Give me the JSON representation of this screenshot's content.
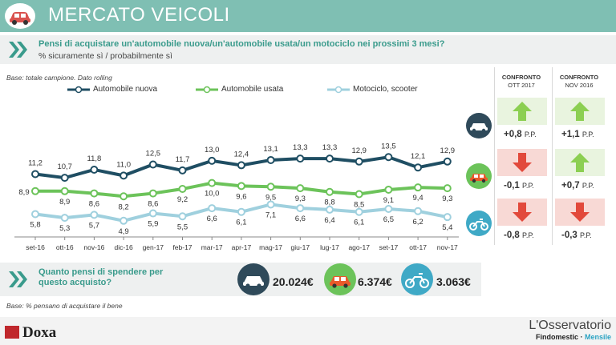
{
  "header": {
    "title": "MERCATO VEICOLI"
  },
  "question": {
    "text": "Pensi di acquistare un'automobile nuova/un'automobile usata/un motociclo nei prossimi 3 mesi?",
    "sub": "% sicuramente sì / probabilmente sì"
  },
  "base_top": "Base: totale campione. Dato rolling",
  "colors": {
    "new": "#1f4e63",
    "used": "#6cc35a",
    "moto": "#9fd0de",
    "up": "#8ccf52",
    "down": "#e2493b",
    "teal": "#3a9b8c"
  },
  "chart_data": {
    "type": "line",
    "categories": [
      "set-16",
      "ott-16",
      "nov-16",
      "dic-16",
      "gen-17",
      "feb-17",
      "mar-17",
      "apr-17",
      "mag-17",
      "giu-17",
      "lug-17",
      "ago-17",
      "set-17",
      "ott-17",
      "nov-17"
    ],
    "series": [
      {
        "name": "Automobile nuova",
        "values": [
          11.2,
          10.7,
          11.8,
          11.0,
          12.5,
          11.7,
          13.0,
          12.4,
          13.1,
          13.3,
          13.3,
          12.9,
          13.5,
          12.1,
          12.9
        ],
        "labels": [
          "11,2",
          "10,7",
          "11,8",
          "11,0",
          "12,5",
          "11,7",
          "13,0",
          "12,4",
          "13,1",
          "13,3",
          "13,3",
          "12,9",
          "13,5",
          "12,1",
          "12,9"
        ]
      },
      {
        "name": "Automobile usata",
        "values": [
          8.9,
          8.9,
          8.6,
          8.2,
          8.6,
          9.2,
          10.0,
          9.6,
          9.5,
          9.3,
          8.8,
          8.5,
          9.1,
          9.4,
          9.3
        ],
        "labels": [
          "8,9",
          "8,9",
          "8,6",
          "8,2",
          "8,6",
          "9,2",
          "10,0",
          "9,6",
          "9,5",
          "9,3",
          "8,8",
          "8,5",
          "9,1",
          "9,4",
          "9,3"
        ]
      },
      {
        "name": "Motociclo, scooter",
        "values": [
          5.8,
          5.3,
          5.7,
          4.9,
          5.9,
          5.5,
          6.6,
          6.1,
          7.1,
          6.6,
          6.4,
          6.1,
          6.5,
          6.2,
          5.4
        ],
        "labels": [
          "5,8",
          "5,3",
          "5,7",
          "4,9",
          "5,9",
          "5,5",
          "6,6",
          "6,1",
          "7,1",
          "6,6",
          "6,4",
          "6,1",
          "6,5",
          "6,2",
          "5,4"
        ]
      }
    ]
  },
  "comparison": {
    "col1": {
      "line1": "CONFRONTO",
      "line2": "OTT 2017"
    },
    "col2": {
      "line1": "CONFRONTO",
      "line2": "NOV 2016"
    },
    "unit": "P.P.",
    "rows": [
      {
        "vehicle": "car-new-icon",
        "c1": "+0,8",
        "c1_dir": "up",
        "c2": "+1,1",
        "c2_dir": "up"
      },
      {
        "vehicle": "car-used-icon",
        "c1": "-0,1",
        "c1_dir": "down",
        "c2": "+0,7",
        "c2_dir": "up"
      },
      {
        "vehicle": "moto-icon",
        "c1": "-0,8",
        "c1_dir": "down",
        "c2": "-0,3",
        "c2_dir": "down"
      }
    ]
  },
  "spending": {
    "question": "Quanto pensi di spendere per questo acquisto?",
    "new": "20.024€",
    "used": "6.374€",
    "moto": "3.063€"
  },
  "base_bottom": "Base: % pensano di acquistare il bene",
  "footer": {
    "doxa": "Doxa",
    "oss_title": "L'Osservatorio",
    "oss_brand": "Findomestic",
    "oss_sep": " · ",
    "oss_monthly": "Mensile"
  }
}
